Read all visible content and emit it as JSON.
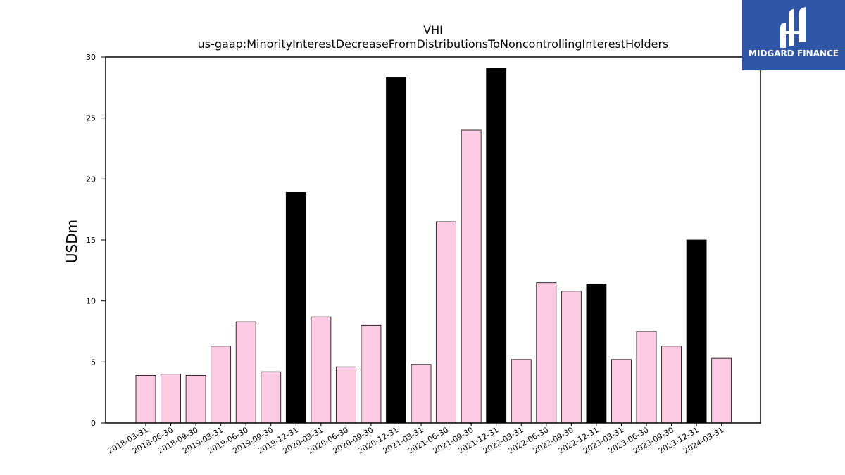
{
  "chart_data": {
    "type": "bar",
    "title": "VHI",
    "subtitle": "us-gaap:MinorityInterestDecreaseFromDistributionsToNoncontrollingInterestHolders",
    "ylabel": "USDm",
    "xlabel": "",
    "ylim": [
      0,
      30
    ],
    "yticks": [
      "0",
      "5",
      "10",
      "15",
      "20",
      "25",
      "30"
    ],
    "grid": false,
    "categories": [
      "2018-03-31",
      "2018-06-30",
      "2018-09-30",
      "2019-03-31",
      "2019-06-30",
      "2019-09-30",
      "2019-12-31",
      "2020-03-31",
      "2020-06-30",
      "2020-09-30",
      "2020-12-31",
      "2021-03-31",
      "2021-06-30",
      "2021-09-30",
      "2021-12-31",
      "2022-03-31",
      "2022-06-30",
      "2022-09-30",
      "2022-12-31",
      "2023-03-31",
      "2023-06-30",
      "2023-09-30",
      "2023-12-31",
      "2024-03-31"
    ],
    "values": [
      3.9,
      4.0,
      3.9,
      6.3,
      8.3,
      4.2,
      18.9,
      8.7,
      4.6,
      8.0,
      28.3,
      4.8,
      16.5,
      24.0,
      29.1,
      5.2,
      11.5,
      10.8,
      11.4,
      5.2,
      7.5,
      6.3,
      15.0,
      5.3
    ],
    "colors": {
      "quarter": "#fccbe3",
      "year_end": "#000000",
      "edge": "#000000"
    },
    "year_end_categories": [
      "2019-12-31",
      "2020-12-31",
      "2021-12-31",
      "2022-12-31",
      "2023-12-31"
    ]
  },
  "logo": {
    "text": "MIDGARD FINANCE",
    "background": "#2f56a6"
  }
}
